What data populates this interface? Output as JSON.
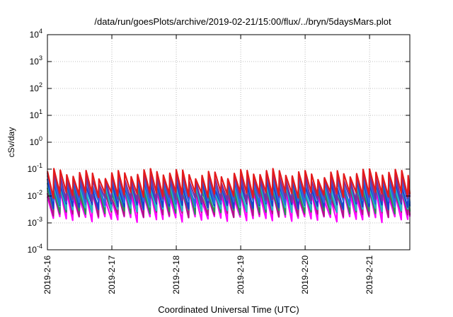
{
  "chart_data": {
    "type": "line",
    "title": "/data/run/goesPlots/archive/2019-02-21/15:00/flux/../bryn/5daysMars.plot",
    "xlabel": "Coordinated Universal Time (UTC)",
    "ylabel": "cSv/day",
    "yscale": "log",
    "ylim": [
      0.0001,
      10000
    ],
    "y_ticks": [
      {
        "value": 0.0001,
        "mantissa": "10",
        "exp": "-4"
      },
      {
        "value": 0.001,
        "mantissa": "10",
        "exp": "-3"
      },
      {
        "value": 0.01,
        "mantissa": "10",
        "exp": "-2"
      },
      {
        "value": 0.1,
        "mantissa": "10",
        "exp": "-1"
      },
      {
        "value": 1,
        "mantissa": "10",
        "exp": "0"
      },
      {
        "value": 10,
        "mantissa": "10",
        "exp": "1"
      },
      {
        "value": 100,
        "mantissa": "10",
        "exp": "2"
      },
      {
        "value": 1000,
        "mantissa": "10",
        "exp": "3"
      },
      {
        "value": 10000,
        "mantissa": "10",
        "exp": "4"
      }
    ],
    "xlim": [
      "2019-02-16T00:00",
      "2019-02-21T15:00"
    ],
    "x_ticks": [
      "2019-2-16",
      "2019-2-17",
      "2019-2-18",
      "2019-2-19",
      "2019-2-20",
      "2019-2-21"
    ],
    "grid": true,
    "legend": "none",
    "pattern": {
      "cycles_per_day": 10,
      "band_highs": [
        0.09,
        0.065,
        0.05,
        0.038,
        0.03,
        0.024,
        0.018,
        0.014
      ],
      "band_lows": [
        0.012,
        0.008,
        0.006,
        0.0045,
        0.0035,
        0.0028,
        0.0022,
        0.0015
      ]
    },
    "series_colors": [
      "#e41a1c",
      "#7b2fa0",
      "#2a6fe0",
      "#1a3fcf",
      "#22b8c8",
      "#2e8b57",
      "#b0148a",
      "#ff00ff"
    ]
  }
}
